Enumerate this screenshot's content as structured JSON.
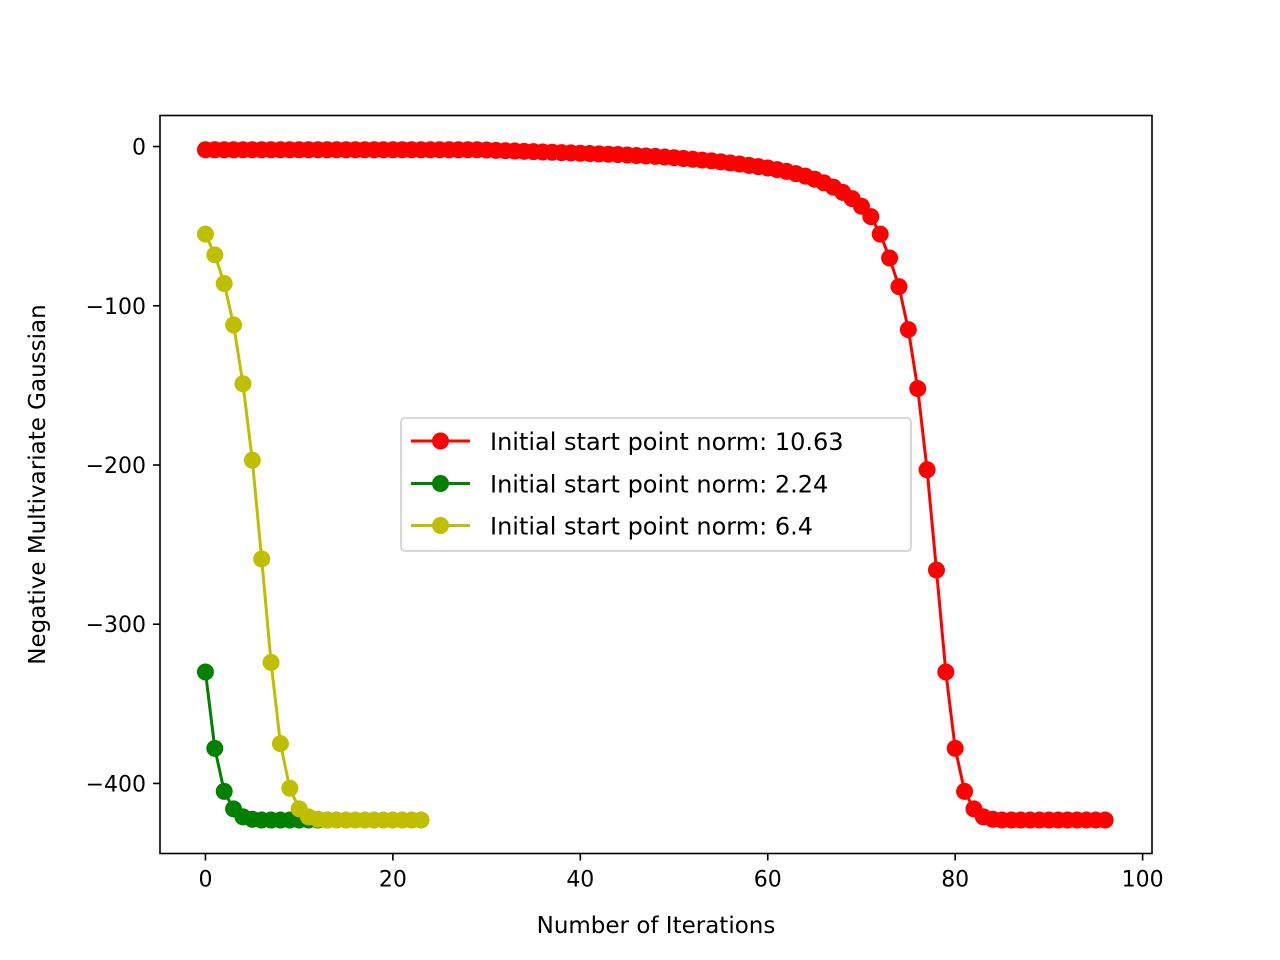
{
  "chart_data": {
    "type": "line",
    "title": "",
    "xlabel": "Number of Iterations",
    "ylabel": "Negative Multivariate Gaussian",
    "xlim": [
      -4.85,
      101
    ],
    "ylim": [
      -444,
      19.5
    ],
    "xticks": [
      0,
      20,
      40,
      60,
      80,
      100
    ],
    "xtick_labels": [
      "0",
      "20",
      "40",
      "60",
      "80",
      "100"
    ],
    "yticks": [
      0,
      -100,
      -200,
      -300,
      -400
    ],
    "ytick_labels": [
      "0",
      "−100",
      "−200",
      "−300",
      "−400"
    ],
    "grid": false,
    "legend_position": "center",
    "marker": "circle",
    "series": [
      {
        "name": "Initial start point norm: 10.63",
        "color": "#ff0000",
        "x": [
          0,
          1,
          2,
          3,
          4,
          5,
          6,
          7,
          8,
          9,
          10,
          11,
          12,
          13,
          14,
          15,
          16,
          17,
          18,
          19,
          20,
          21,
          22,
          23,
          24,
          25,
          26,
          27,
          28,
          29,
          30,
          31,
          32,
          33,
          34,
          35,
          36,
          37,
          38,
          39,
          40,
          41,
          42,
          43,
          44,
          45,
          46,
          47,
          48,
          49,
          50,
          51,
          52,
          53,
          54,
          55,
          56,
          57,
          58,
          59,
          60,
          61,
          62,
          63,
          64,
          65,
          66,
          67,
          68,
          69,
          70,
          71,
          72,
          73,
          74,
          75,
          76,
          77,
          78,
          79,
          80,
          81,
          82,
          83,
          84,
          85,
          86,
          87,
          88,
          89,
          90,
          91,
          92,
          93,
          94,
          95,
          96
        ],
        "y": [
          -2,
          -2,
          -2,
          -2,
          -2,
          -2,
          -2,
          -2,
          -2,
          -2,
          -2,
          -2,
          -2,
          -2,
          -2,
          -2,
          -2,
          -2,
          -2,
          -2,
          -2,
          -2,
          -2,
          -2,
          -2,
          -2,
          -2,
          -2,
          -2,
          -2,
          -2.2,
          -2.4,
          -2.6,
          -2.8,
          -3,
          -3.2,
          -3.4,
          -3.6,
          -3.8,
          -4,
          -4.2,
          -4.4,
          -4.6,
          -4.8,
          -5,
          -5.3,
          -5.6,
          -5.9,
          -6.2,
          -6.6,
          -7,
          -7.5,
          -8,
          -8.5,
          -9,
          -9.6,
          -10.3,
          -11,
          -11.8,
          -12.6,
          -13.5,
          -14.5,
          -15.6,
          -17,
          -18.6,
          -20.5,
          -22.8,
          -25.5,
          -28.8,
          -32.7,
          -37.5,
          -44,
          -55,
          -70,
          -88,
          -115,
          -152,
          -203,
          -266,
          -330,
          -378,
          -405,
          -416,
          -421,
          -422.5,
          -423,
          -423,
          -423,
          -423,
          -423,
          -423,
          -423,
          -423,
          -423,
          -423,
          -423,
          -423
        ]
      },
      {
        "name": "Initial start point norm: 2.24",
        "color": "#008000",
        "x": [
          0,
          1,
          2,
          3,
          4,
          5,
          6,
          7,
          8,
          9,
          10,
          11,
          12,
          13
        ],
        "y": [
          -330,
          -378,
          -405,
          -416,
          -421,
          -422.5,
          -423,
          -423,
          -423,
          -423,
          -423,
          -423,
          -423,
          -423
        ]
      },
      {
        "name": "Initial start point norm: 6.4",
        "color": "#bfbf00",
        "x": [
          0,
          1,
          2,
          3,
          4,
          5,
          6,
          7,
          8,
          9,
          10,
          11,
          12,
          13,
          14,
          15,
          16,
          17,
          18,
          19,
          20,
          21,
          22,
          23
        ],
        "y": [
          -55,
          -68,
          -86,
          -112,
          -149,
          -197,
          -259,
          -324,
          -375,
          -403,
          -416,
          -421,
          -422.5,
          -423,
          -423,
          -423,
          -423,
          -423,
          -423,
          -423,
          -423,
          -423,
          -423,
          -423
        ]
      }
    ]
  }
}
